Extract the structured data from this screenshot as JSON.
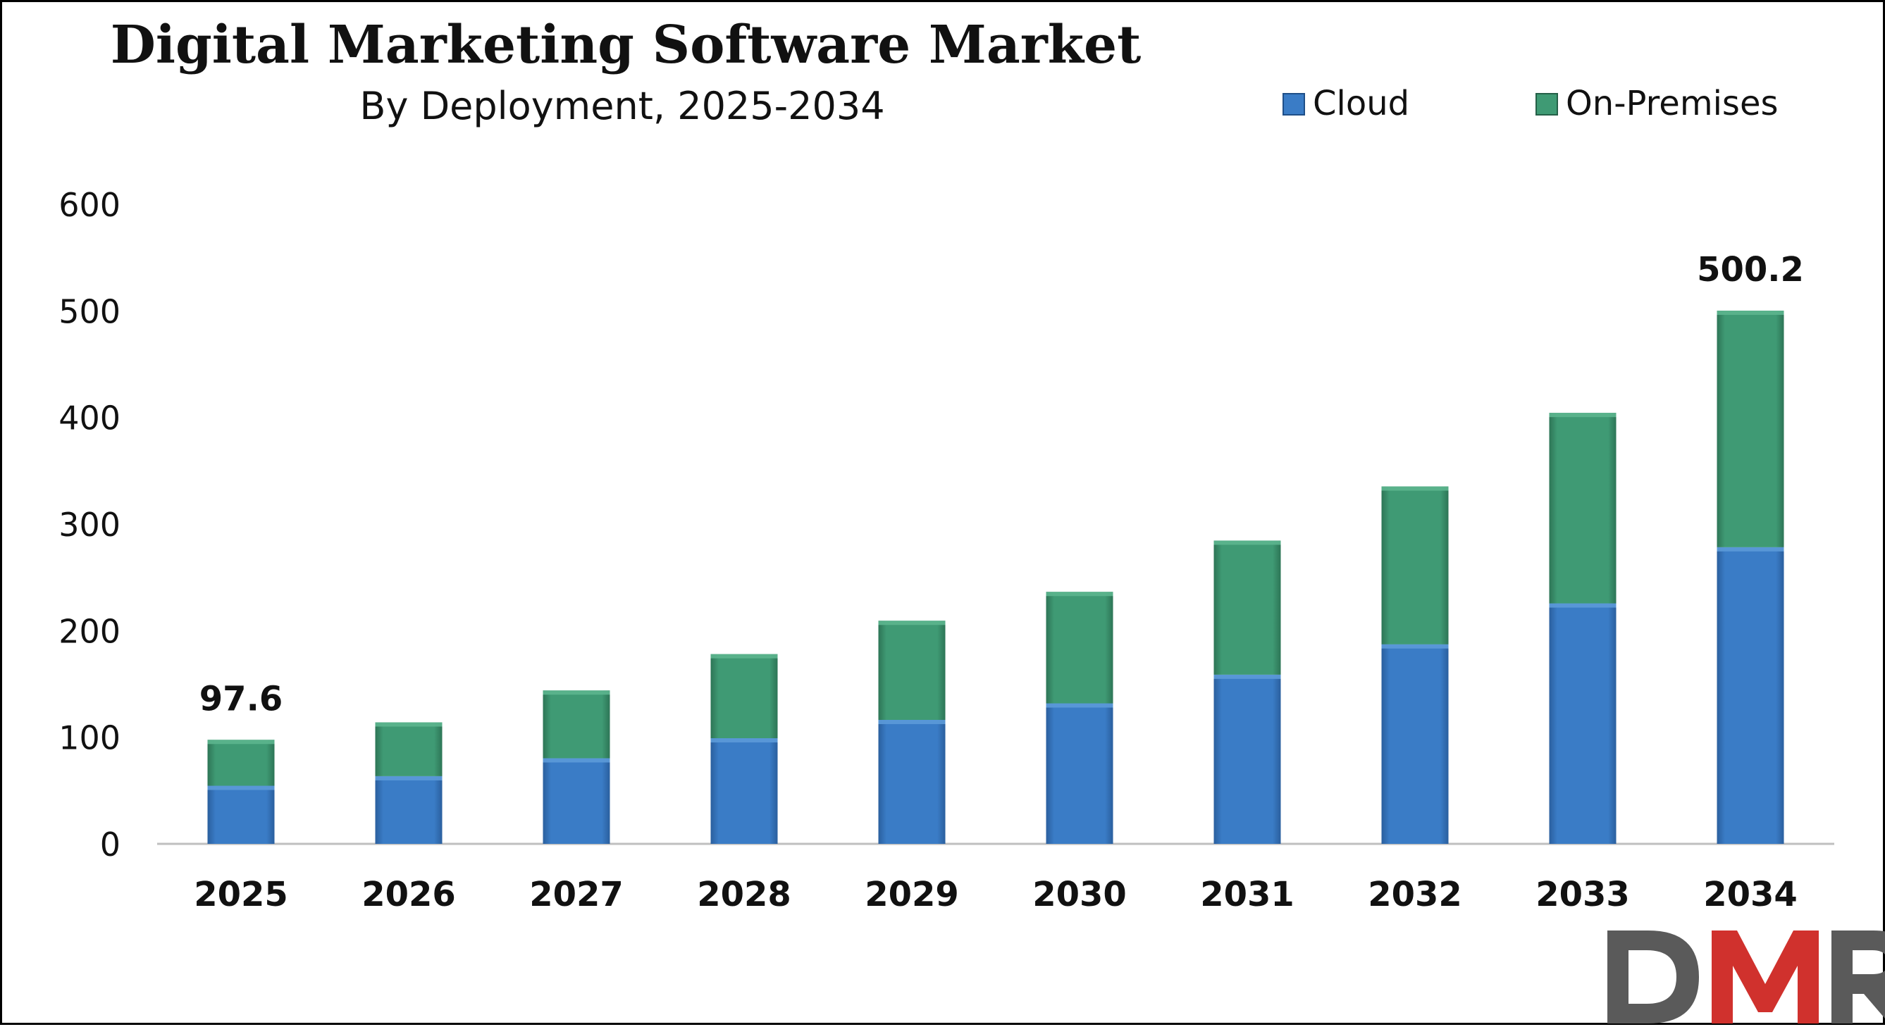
{
  "chart_data": {
    "type": "bar",
    "stacked": true,
    "title": "Digital Marketing Software Market",
    "subtitle": "By Deployment, 2025-2034",
    "categories": [
      "2025",
      "2026",
      "2027",
      "2028",
      "2029",
      "2030",
      "2031",
      "2032",
      "2033",
      "2034"
    ],
    "series": [
      {
        "name": "Cloud",
        "color": "#3a7cc6",
        "values": [
          54.5,
          63.5,
          80.3,
          99.1,
          116.3,
          131.8,
          158.7,
          187.2,
          225.6,
          278.3
        ]
      },
      {
        "name": "On-Premises",
        "color": "#3f9a74",
        "values": [
          43.1,
          50.5,
          63.6,
          78.9,
          93.0,
          104.6,
          125.8,
          148.1,
          178.7,
          221.9
        ]
      }
    ],
    "totals": [
      97.6,
      114.0,
      143.9,
      178.0,
      209.3,
      236.4,
      284.5,
      335.3,
      404.3,
      500.2
    ],
    "data_labels": [
      {
        "category": "2025",
        "text": "97.6"
      },
      {
        "category": "2034",
        "text": "500.2"
      }
    ],
    "ylim": [
      0,
      600
    ],
    "yticks": [
      0,
      100,
      200,
      300,
      400,
      500,
      600
    ],
    "xlabel": "",
    "ylabel": "",
    "grid": false,
    "legend_position": "top-right"
  },
  "logo": {
    "text": "DMR",
    "colors": [
      "#5a5a5a",
      "#d0312d",
      "#5a5a5a"
    ]
  }
}
